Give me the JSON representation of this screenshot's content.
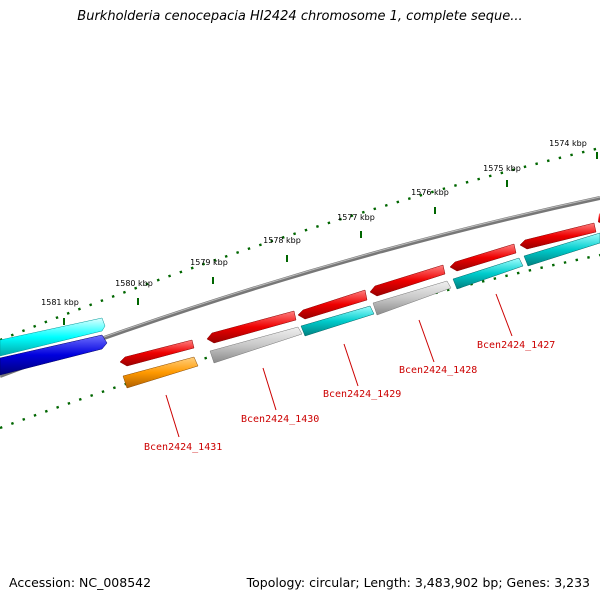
{
  "title": "Burkholderia cenocepacia HI2424 chromosome 1, complete seque...",
  "footer": {
    "accession": "Accession: NC_008542",
    "topology": "Topology: circular; Length: 3,483,902 bp; Genes: 3,233"
  },
  "ticks": [
    {
      "label": "1574 kbp"
    },
    {
      "label": "1575 kbp"
    },
    {
      "label": "1576 kbp"
    },
    {
      "label": "1577 kbp"
    },
    {
      "label": "1578 kbp"
    },
    {
      "label": "1579 kbp"
    },
    {
      "label": "1580 kbp"
    },
    {
      "label": "1581 kbp"
    }
  ],
  "gene_labels": [
    {
      "text": "Bcen2424_1427"
    },
    {
      "text": "Bcen2424_1428"
    },
    {
      "text": "Bcen2424_1429"
    },
    {
      "text": "Bcen2424_1430"
    },
    {
      "text": "Bcen2424_1431"
    }
  ],
  "colors": {
    "forward_cds": "#ee0000",
    "reverse_cds": "#00cccc",
    "other_reverse": "#c8c8c8",
    "orange_feature": "#ff9900",
    "blue_feature": "#0000dd",
    "backbone": "#888888",
    "tick": "#006600",
    "label": "#cc0000"
  }
}
